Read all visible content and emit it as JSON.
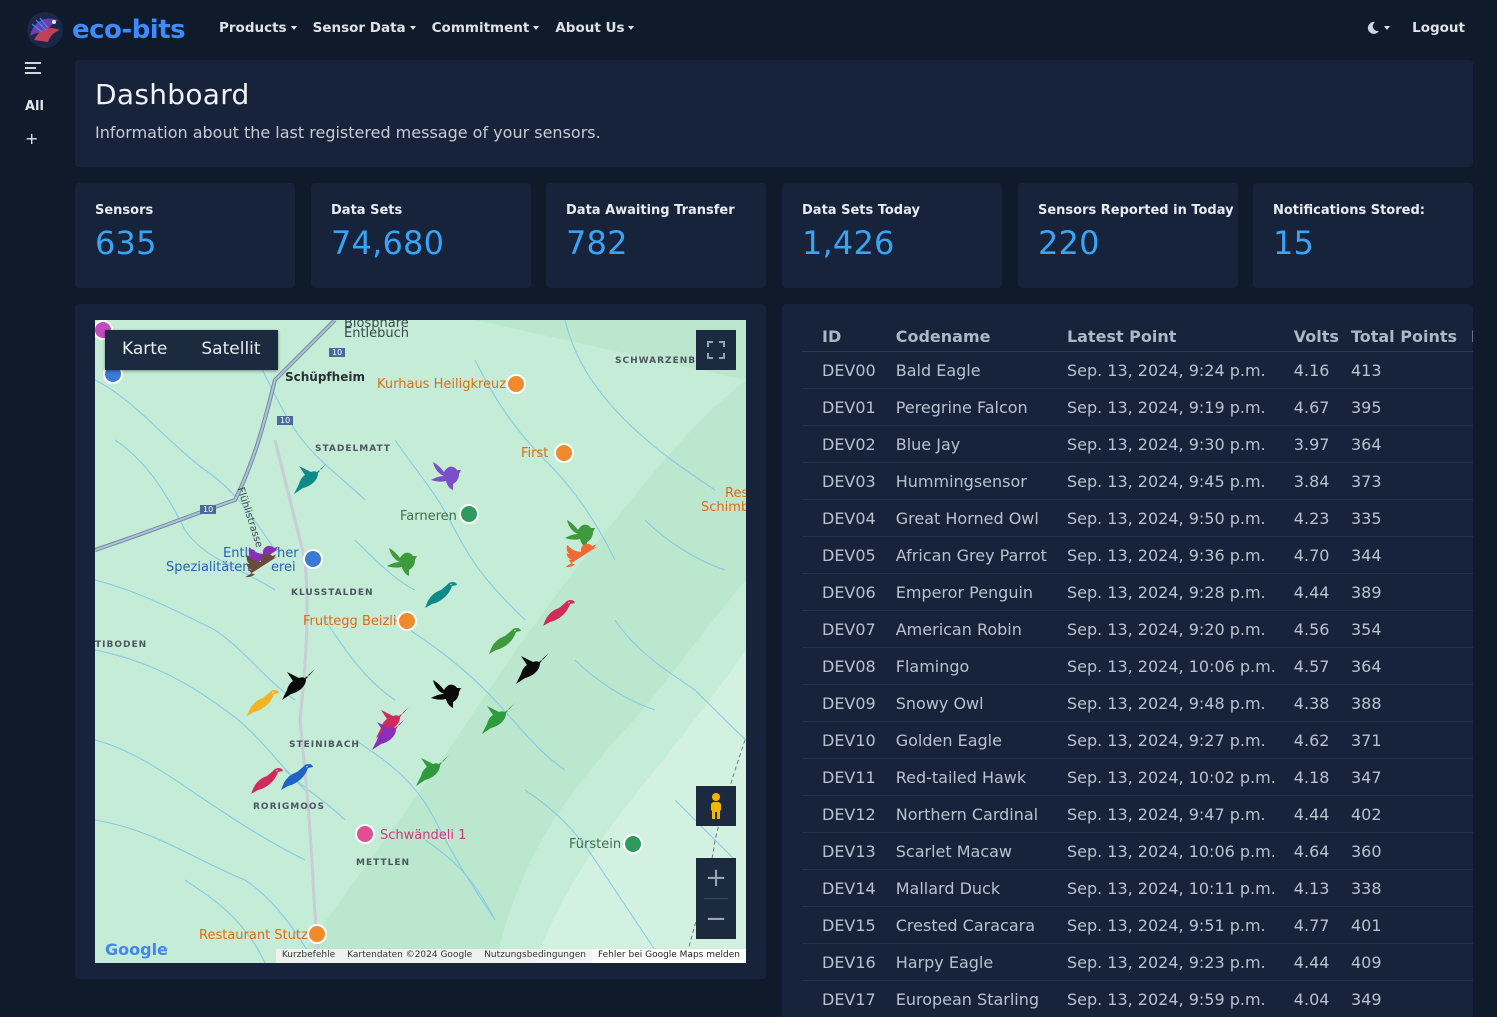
{
  "brand": {
    "name": "eco-bits"
  },
  "nav": {
    "items": [
      {
        "label": "Products"
      },
      {
        "label": "Sensor Data"
      },
      {
        "label": "Commitment"
      },
      {
        "label": "About Us"
      }
    ],
    "logout_label": "Logout"
  },
  "sidebar": {
    "all_label": "All",
    "add_label": "+"
  },
  "header": {
    "title": "Dashboard",
    "subtitle": "Information about the last registered message of your sensors."
  },
  "stats": [
    {
      "label": "Sensors",
      "value": "635"
    },
    {
      "label": "Data Sets",
      "value": "74,680"
    },
    {
      "label": "Data Awaiting Transfer",
      "value": "782"
    },
    {
      "label": "Data Sets Today",
      "value": "1,426"
    },
    {
      "label": "Sensors Reported in Today",
      "value": "220"
    },
    {
      "label": "Notifications Stored:",
      "value": "15"
    }
  ],
  "map": {
    "type_buttons": [
      "Karte",
      "Satellit"
    ],
    "google_logo": "Google",
    "attribution": [
      "Kurzbefehle",
      "Kartendaten ©2024 Google",
      "Nutzungsbedingungen",
      "Fehler bei Google Maps melden"
    ],
    "labels": {
      "biosphere": "Biosphäre",
      "entlebuch": "Entlebuch",
      "schuepfheim": "Schüpfheim",
      "kurhaus": "Kurhaus Heiligkreuz",
      "schwarzenberg": "SCHWARZENBER",
      "stadelmatt": "STADELMATT",
      "first": "First",
      "res": "Res",
      "schimb": "Schimb",
      "fluehli": "Flühlistrasse",
      "farneren": "Farneren",
      "entle1": "Entle",
      "entle2": "her",
      "spez1": "Spezialitäten",
      "spez2": "erei",
      "klusstalden": "KLUSSTALDEN",
      "fruttegg": "Fruttegg Beizli",
      "tiboden": "TIBODEN",
      "steinibach": "STEINIBACH",
      "rorigmoos": "RORIGMOOS",
      "schwaendeli": "Schwändeli 1",
      "mettlen": "METTLEN",
      "fuerstein": "Fürstein",
      "restaurant": "Restaurant Stutz",
      "road10a": "10",
      "road10b": "10",
      "road10c": "10"
    }
  },
  "table": {
    "headers": [
      "ID",
      "Codename",
      "Latest Point",
      "Volts",
      "Total Points",
      "Icon"
    ],
    "rows": [
      {
        "id": "DEV00",
        "codename": "Bald Eagle",
        "latest": "Sep. 13, 2024, 9:24 p.m.",
        "volts": "4.16",
        "points": "413",
        "icon": "hummingbird-icon",
        "color": "#0e8a88"
      },
      {
        "id": "DEV01",
        "codename": "Peregrine Falcon",
        "latest": "Sep. 13, 2024, 9:19 p.m.",
        "volts": "4.67",
        "points": "395",
        "icon": "hummingbird-icon",
        "color": "#8c2fb8"
      },
      {
        "id": "DEV02",
        "codename": "Blue Jay",
        "latest": "Sep. 13, 2024, 9:30 p.m.",
        "volts": "3.97",
        "points": "364",
        "icon": "dove-icon",
        "color": "#3e9a3a"
      },
      {
        "id": "DEV03",
        "codename": "Hummingsensor",
        "latest": "Sep. 13, 2024, 9:45 p.m.",
        "volts": "3.84",
        "points": "373",
        "icon": "twitter-bird-icon",
        "color": "#ef6a35"
      },
      {
        "id": "DEV04",
        "codename": "Great Horned Owl",
        "latest": "Sep. 13, 2024, 9:50 p.m.",
        "volts": "4.23",
        "points": "335",
        "icon": "songbird-icon",
        "color": "#d12b5a"
      },
      {
        "id": "DEV05",
        "codename": "African Grey Parrot",
        "latest": "Sep. 13, 2024, 9:36 p.m.",
        "volts": "4.70",
        "points": "344",
        "icon": "dove-icon",
        "color": "#7b4fc6"
      },
      {
        "id": "DEV06",
        "codename": "Emperor Penguin",
        "latest": "Sep. 13, 2024, 9:28 p.m.",
        "volts": "4.44",
        "points": "389",
        "icon": "hummingbird-icon",
        "color": "#0a0a0a"
      },
      {
        "id": "DEV07",
        "codename": "American Robin",
        "latest": "Sep. 13, 2024, 9:20 p.m.",
        "volts": "4.56",
        "points": "354",
        "icon": "dove-icon",
        "color": "#3e9a3a"
      },
      {
        "id": "DEV08",
        "codename": "Flamingo",
        "latest": "Sep. 13, 2024, 10:06 p.m.",
        "volts": "4.57",
        "points": "364",
        "icon": "songbird-icon",
        "color": "#d12b5a"
      },
      {
        "id": "DEV09",
        "codename": "Snowy Owl",
        "latest": "Sep. 13, 2024, 9:48 p.m.",
        "volts": "4.38",
        "points": "388",
        "icon": "hummingbird-icon",
        "color": "#12a0b0"
      },
      {
        "id": "DEV10",
        "codename": "Golden Eagle",
        "latest": "Sep. 13, 2024, 9:27 p.m.",
        "volts": "4.62",
        "points": "371",
        "icon": "hummingbird-icon",
        "color": "#2f9a3c"
      },
      {
        "id": "DEV11",
        "codename": "Red-tailed Hawk",
        "latest": "Sep. 13, 2024, 10:02 p.m.",
        "volts": "4.18",
        "points": "347",
        "icon": "hummingbird-icon",
        "color": "#2f9a3c"
      },
      {
        "id": "DEV12",
        "codename": "Northern Cardinal",
        "latest": "Sep. 13, 2024, 9:47 p.m.",
        "volts": "4.44",
        "points": "402",
        "icon": "hummingbird-icon",
        "color": "#d12b5a"
      },
      {
        "id": "DEV13",
        "codename": "Scarlet Macaw",
        "latest": "Sep. 13, 2024, 10:06 p.m.",
        "volts": "4.64",
        "points": "360",
        "icon": "songbird-icon",
        "color": "#f2b422"
      },
      {
        "id": "DEV14",
        "codename": "Mallard Duck",
        "latest": "Sep. 13, 2024, 10:11 p.m.",
        "volts": "4.13",
        "points": "338",
        "icon": "twitter-bird-icon",
        "color": "#6b4a3a"
      },
      {
        "id": "DEV15",
        "codename": "Crested Caracara",
        "latest": "Sep. 13, 2024, 9:51 p.m.",
        "volts": "4.77",
        "points": "401",
        "icon": "hummingbird-icon",
        "color": "#0a0a0a"
      },
      {
        "id": "DEV16",
        "codename": "Harpy Eagle",
        "latest": "Sep. 13, 2024, 9:23 p.m.",
        "volts": "4.44",
        "points": "409",
        "icon": "songbird-icon",
        "color": "#1f63c9"
      },
      {
        "id": "DEV17",
        "codename": "European Starling",
        "latest": "Sep. 13, 2024, 9:59 p.m.",
        "volts": "4.04",
        "points": "349",
        "icon": "dove-icon",
        "color": "#0a0a0a"
      }
    ]
  },
  "map_markers": [
    {
      "icon": "hummingbird-icon",
      "color": "#0e8a88"
    },
    {
      "icon": "dove-icon",
      "color": "#7b4fc6"
    },
    {
      "icon": "twitter-bird-icon",
      "color": "#8c2fb8"
    },
    {
      "icon": "twitter-bird-icon",
      "color": "#6b4a3a"
    },
    {
      "icon": "dove-icon",
      "color": "#3e9a3a"
    },
    {
      "icon": "dove-icon",
      "color": "#3e9a3a"
    },
    {
      "icon": "twitter-bird-icon",
      "color": "#ef6a35"
    },
    {
      "icon": "songbird-icon",
      "color": "#0e8a88"
    },
    {
      "icon": "songbird-icon",
      "color": "#d12b5a"
    },
    {
      "icon": "songbird-icon",
      "color": "#3e9a3a"
    },
    {
      "icon": "hummingbird-icon",
      "color": "#0a0a0a"
    },
    {
      "icon": "hummingbird-icon",
      "color": "#0a0a0a"
    },
    {
      "icon": "dove-icon",
      "color": "#0a0a0a"
    },
    {
      "icon": "songbird-icon",
      "color": "#f2b422"
    },
    {
      "icon": "hummingbird-icon",
      "color": "#d12b5a"
    },
    {
      "icon": "hummingbird-icon",
      "color": "#8c2fb8"
    },
    {
      "icon": "hummingbird-icon",
      "color": "#2f9a3c"
    },
    {
      "icon": "hummingbird-icon",
      "color": "#2f9a3c"
    },
    {
      "icon": "songbird-icon",
      "color": "#d12b5a"
    },
    {
      "icon": "songbird-icon",
      "color": "#1f63c9"
    }
  ]
}
